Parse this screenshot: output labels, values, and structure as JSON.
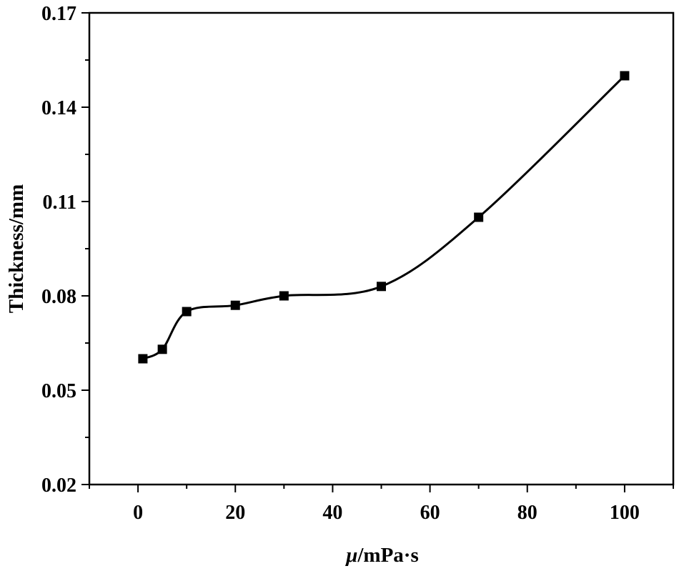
{
  "chart_data": {
    "type": "line",
    "title": "",
    "xlabel_symbol": "μ",
    "xlabel_unit": "/mPa·s",
    "ylabel": "Thickness/mm",
    "xlim": [
      -10,
      110
    ],
    "ylim": [
      0.02,
      0.17
    ],
    "x_ticks": [
      0,
      20,
      40,
      60,
      80,
      100
    ],
    "x_minor_ticks": [
      -10,
      10,
      30,
      50,
      70,
      90,
      110
    ],
    "y_ticks": [
      0.02,
      0.05,
      0.08,
      0.11,
      0.14,
      0.17
    ],
    "y_tick_labels": [
      "0.02",
      "0.05",
      "0.08",
      "0.11",
      "0.14",
      "0.17"
    ],
    "y_minor_ticks": [
      0.035,
      0.065,
      0.095,
      0.125,
      0.155
    ],
    "grid": false,
    "series": [
      {
        "name": "Thickness",
        "marker": "square",
        "x": [
          1,
          5,
          10,
          20,
          30,
          50,
          70,
          100
        ],
        "values": [
          0.06,
          0.063,
          0.075,
          0.077,
          0.08,
          0.083,
          0.105,
          0.15
        ]
      }
    ]
  }
}
